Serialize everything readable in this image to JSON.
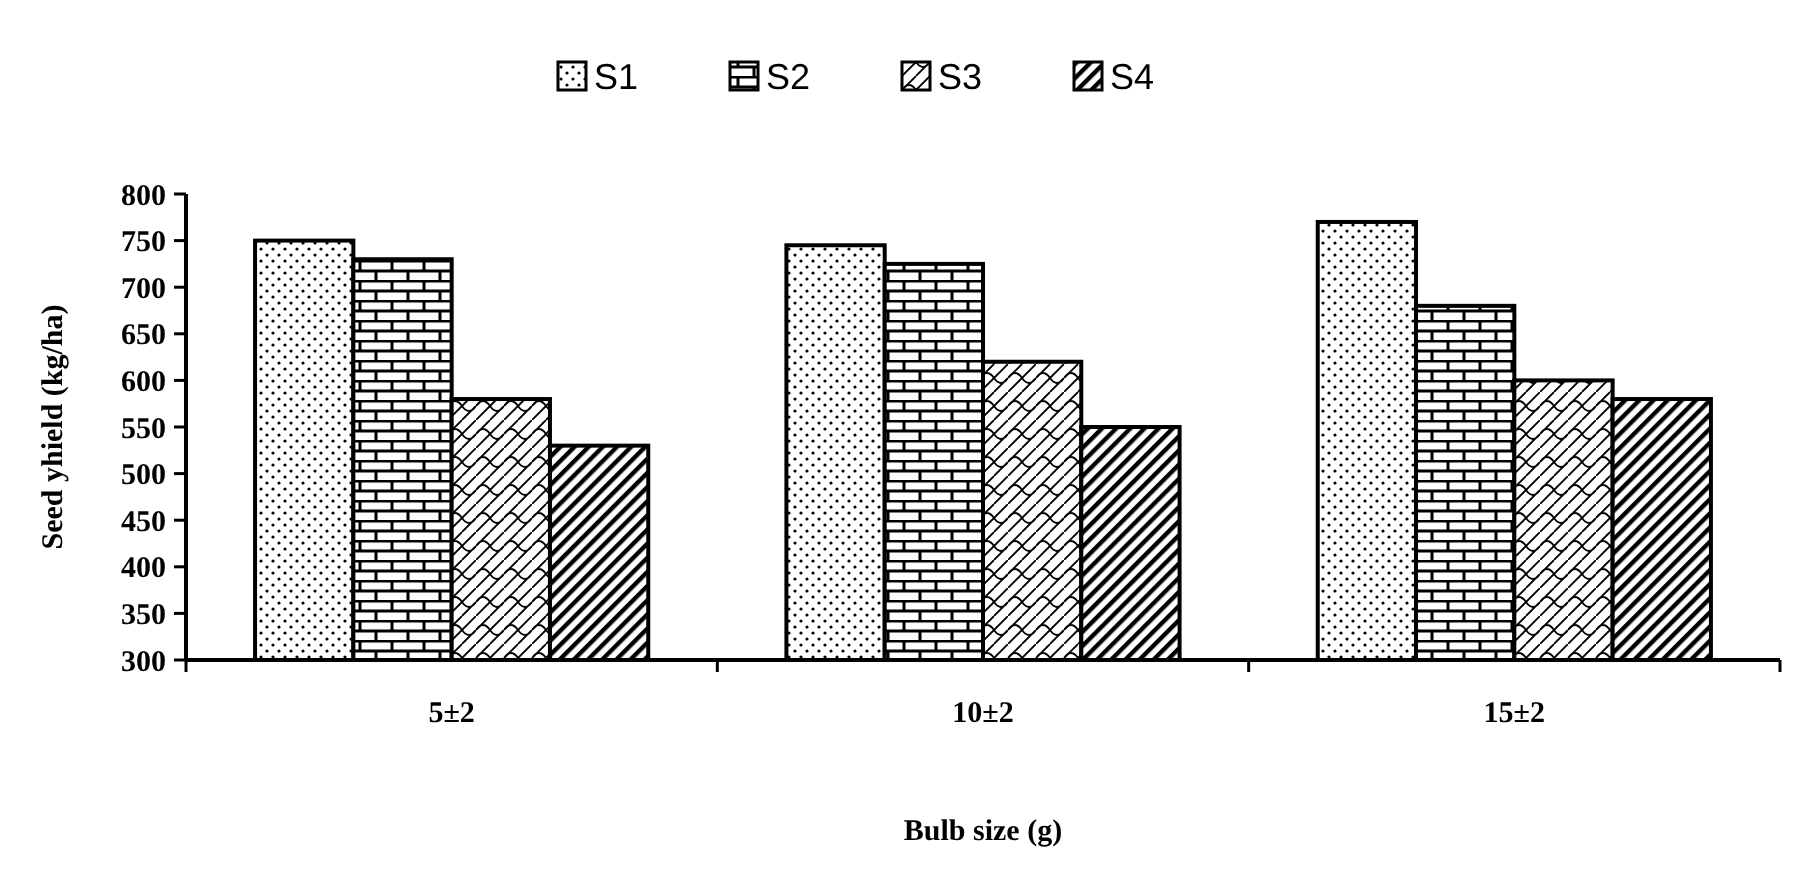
{
  "chart_data": {
    "type": "bar",
    "xlabel": "Bulb size (g)",
    "ylabel": "Seed yhield (kg/ha)",
    "categories": [
      "5±2",
      "10±2",
      "15±2"
    ],
    "series": [
      {
        "name": "S1",
        "color": "#000000",
        "values": [
          750,
          745,
          770
        ]
      },
      {
        "name": "S2",
        "color": "#000000",
        "values": [
          730,
          725,
          680
        ]
      },
      {
        "name": "S3",
        "color": "#000000",
        "values": [
          580,
          620,
          600
        ]
      },
      {
        "name": "S4",
        "color": "#000000",
        "values": [
          530,
          550,
          580
        ]
      }
    ],
    "ylim": [
      300,
      800
    ],
    "yticks": [
      300,
      350,
      400,
      450,
      500,
      550,
      600,
      650,
      700,
      750,
      800
    ],
    "grid": false,
    "legend": "top"
  }
}
